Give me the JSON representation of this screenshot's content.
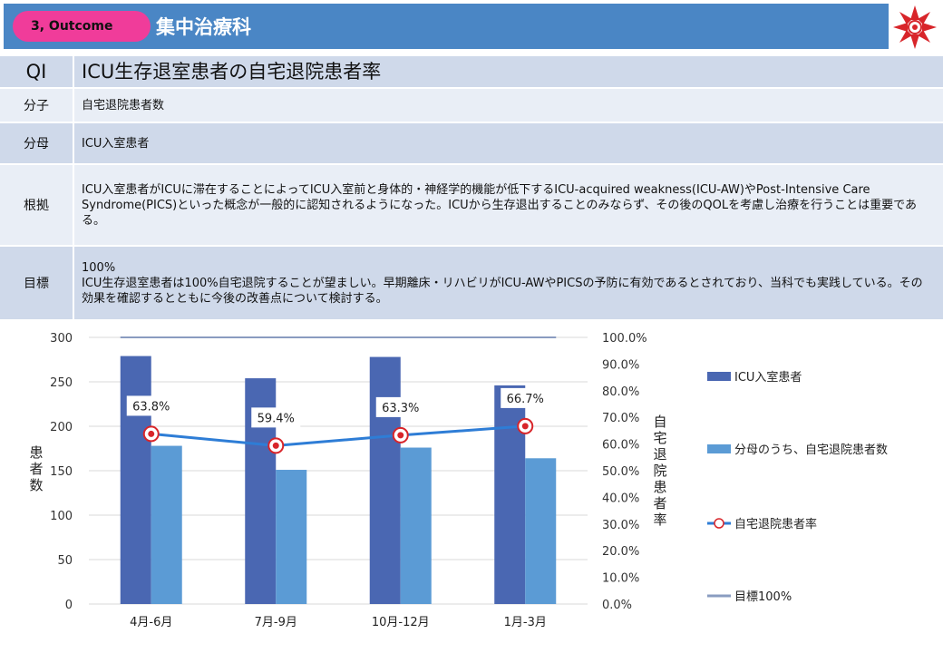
{
  "header": {
    "outcome_label": "3, Outcome",
    "department": "集中治療科"
  },
  "rows": {
    "qi": {
      "label": "QI",
      "value": "ICU生存退室患者の自宅退院患者率"
    },
    "numerator": {
      "label": "分子",
      "value": "自宅退院患者数"
    },
    "denominator": {
      "label": "分母",
      "value": "ICU入室患者"
    },
    "rationale": {
      "label": "根拠",
      "value": "ICU入室患者がICUに滞在することによってICU入室前と身体的・神経学的機能が低下するICU-acquired weakness(ICU-AW)やPost-Intensive Care Syndrome(PICS)といった概念が一般的に認知されるようになった。ICUから生存退出することのみならず、その後のQOLを考慮し治療を行うことは重要である。"
    },
    "target": {
      "label": "目標",
      "line1": "100%",
      "line2": "ICU生存退室患者は100%自宅退院することが望ましい。早期離床・リハビリがICU-AWやPICSの予防に有効であるとされており、当科でも実践している。その効果を確認するとともに今後の改善点について検討する。"
    }
  },
  "colors": {
    "header_bar": "#4a86c5",
    "pill": "#f03c9a",
    "bar1": "#4a67b2",
    "bar2": "#5b9bd5",
    "line": "#2e7dd6",
    "target_line": "#8a9cc0"
  },
  "chart_data": {
    "type": "bar",
    "categories": [
      "4月-6月",
      "7月-9月",
      "10月-12月",
      "1月-3月"
    ],
    "series": [
      {
        "name": "ICU入室患者",
        "type": "bar",
        "axis": "left",
        "values": [
          279,
          254,
          278,
          246
        ]
      },
      {
        "name": "分母のうち、自宅退院患者数",
        "type": "bar",
        "axis": "left",
        "values": [
          178,
          151,
          176,
          164
        ]
      },
      {
        "name": "自宅退院患者率",
        "type": "line",
        "axis": "right",
        "values": [
          63.8,
          59.4,
          63.3,
          66.7
        ],
        "labels": [
          "63.8%",
          "59.4%",
          "63.3%",
          "66.7%"
        ]
      },
      {
        "name": "目標100%",
        "type": "line",
        "axis": "right",
        "values": [
          100,
          100,
          100,
          100
        ]
      }
    ],
    "ylabel": "患者数",
    "y2label": "自宅退院患者率",
    "ylim": [
      0,
      300
    ],
    "y2lim": [
      0,
      100
    ],
    "yticks": [
      "0",
      "50",
      "100",
      "150",
      "200",
      "250",
      "300"
    ],
    "y2ticks": [
      "0.0%",
      "10.0%",
      "20.0%",
      "30.0%",
      "40.0%",
      "50.0%",
      "60.0%",
      "70.0%",
      "80.0%",
      "90.0%",
      "100.0%"
    ],
    "grid": true,
    "legend_position": "right"
  }
}
